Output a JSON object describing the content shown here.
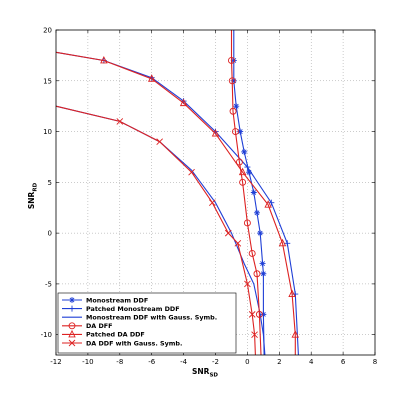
{
  "chart_data": {
    "type": "line",
    "xlabel": "SNR",
    "xlabel_sub": "SD",
    "ylabel": "SNR",
    "ylabel_sub": "RD",
    "xlim": [
      -12,
      8
    ],
    "ylim": [
      -12,
      20
    ],
    "xticks": [
      -12,
      -10,
      -8,
      -6,
      -4,
      -2,
      0,
      2,
      4,
      6,
      8
    ],
    "yticks": [
      -10,
      -5,
      0,
      5,
      10,
      15,
      20
    ],
    "grid": true,
    "legend_position": "bottom-left",
    "colors": {
      "blue": "#1f3fd6",
      "red": "#dd2222"
    },
    "series": [
      {
        "name": "Monostream DDF",
        "color": "#1f3fd6",
        "marker": "star",
        "line": "solid",
        "x": [
          -0.85,
          -0.85,
          -0.85,
          -0.7,
          -0.45,
          -0.2,
          0.1,
          0.4,
          0.6,
          0.8,
          0.95,
          1.0,
          1.0,
          1.05
        ],
        "y": [
          20,
          17,
          15,
          12.5,
          10,
          8,
          6,
          4,
          2,
          0,
          -3,
          -4,
          -8,
          -12
        ]
      },
      {
        "name": "Patched Monostream DDF",
        "color": "#1f3fd6",
        "marker": "plus",
        "line": "solid",
        "x": [
          -12,
          -9,
          -6,
          -4,
          -2,
          0,
          1.5,
          2.5,
          3.0,
          3.2
        ],
        "y": [
          17.8,
          17,
          15.3,
          13,
          10,
          6.5,
          3,
          -1,
          -6,
          -12
        ]
      },
      {
        "name": "Monostream DDF with Gauss. Symb.",
        "color": "#1f3fd6",
        "marker": "none",
        "line": "solid",
        "x": [
          -12,
          -8,
          -5.5,
          -3.5,
          -2,
          -1,
          -0.2,
          0.4,
          0.8,
          1.0,
          1.1
        ],
        "y": [
          12.5,
          11,
          9,
          6.2,
          3,
          0,
          -3,
          -5,
          -8,
          -10,
          -12
        ]
      },
      {
        "name": "DA DFF",
        "color": "#dd2222",
        "marker": "circle",
        "line": "solid",
        "x": [
          -1.0,
          -1.0,
          -0.95,
          -0.9,
          -0.75,
          -0.5,
          -0.3,
          0.0,
          0.3,
          0.6,
          0.75,
          0.85
        ],
        "y": [
          20,
          17,
          15,
          12,
          10,
          7,
          5,
          1,
          -2,
          -4,
          -8,
          -12
        ]
      },
      {
        "name": "Patched DA DDF",
        "color": "#dd2222",
        "marker": "triangle",
        "line": "solid",
        "x": [
          -12,
          -9,
          -6,
          -4,
          -2,
          -0.3,
          1.3,
          2.2,
          2.8,
          3.0,
          3.0
        ],
        "y": [
          17.8,
          17,
          15.2,
          12.8,
          9.8,
          6,
          2.8,
          -1,
          -6,
          -10,
          -12
        ]
      },
      {
        "name": "DA DDF with Gauss. Symb.",
        "color": "#dd2222",
        "marker": "x",
        "line": "solid",
        "x": [
          -12,
          -8,
          -5.5,
          -3.5,
          -2.2,
          -1.2,
          -0.6,
          0,
          0.3,
          0.45,
          0.5
        ],
        "y": [
          12.5,
          11,
          9,
          6,
          3,
          0,
          -1,
          -5,
          -8,
          -10,
          -12
        ]
      }
    ]
  }
}
